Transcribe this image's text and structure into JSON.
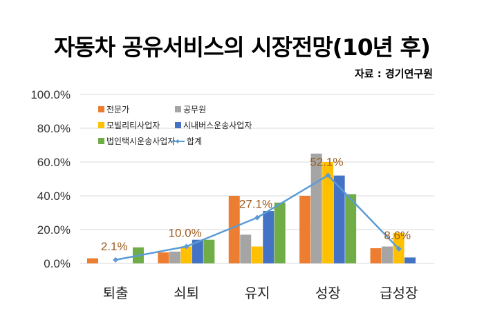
{
  "title": "자동차 공유서비스의 시장전망(10년 후)",
  "source": "자료 : 경기연구원",
  "chart_data": {
    "type": "bar",
    "categories": [
      "퇴출",
      "쇠퇴",
      "유지",
      "성장",
      "급성장"
    ],
    "yticks": [
      "0.0%",
      "20.0%",
      "40.0%",
      "60.0%",
      "80.0%",
      "100.0%"
    ],
    "ylim": [
      0,
      100
    ],
    "grid": true,
    "legend_position": "top-left",
    "series": [
      {
        "name": "전문가",
        "color": "#ed7d31",
        "values": [
          3,
          6.5,
          40,
          40,
          9
        ]
      },
      {
        "name": "공무원",
        "color": "#a5a5a5",
        "values": [
          0,
          7,
          17,
          65,
          10
        ]
      },
      {
        "name": "모빌리티사업자",
        "color": "#ffc000",
        "values": [
          0,
          10,
          10,
          60,
          18
        ]
      },
      {
        "name": "시내버스운송사업자",
        "color": "#4472c4",
        "values": [
          0,
          14,
          31,
          52,
          3.5
        ]
      },
      {
        "name": "법인택시운송사업자",
        "color": "#70ad47",
        "values": [
          9.5,
          14,
          36,
          41,
          0
        ]
      }
    ],
    "line_series": {
      "name": "합계",
      "color": "#5b9bd5",
      "values": [
        2.1,
        10.0,
        27.1,
        52.1,
        8.6
      ]
    },
    "data_labels": [
      "2.1%",
      "10.0%",
      "27.1%",
      "52.1%",
      "8.6%"
    ]
  }
}
